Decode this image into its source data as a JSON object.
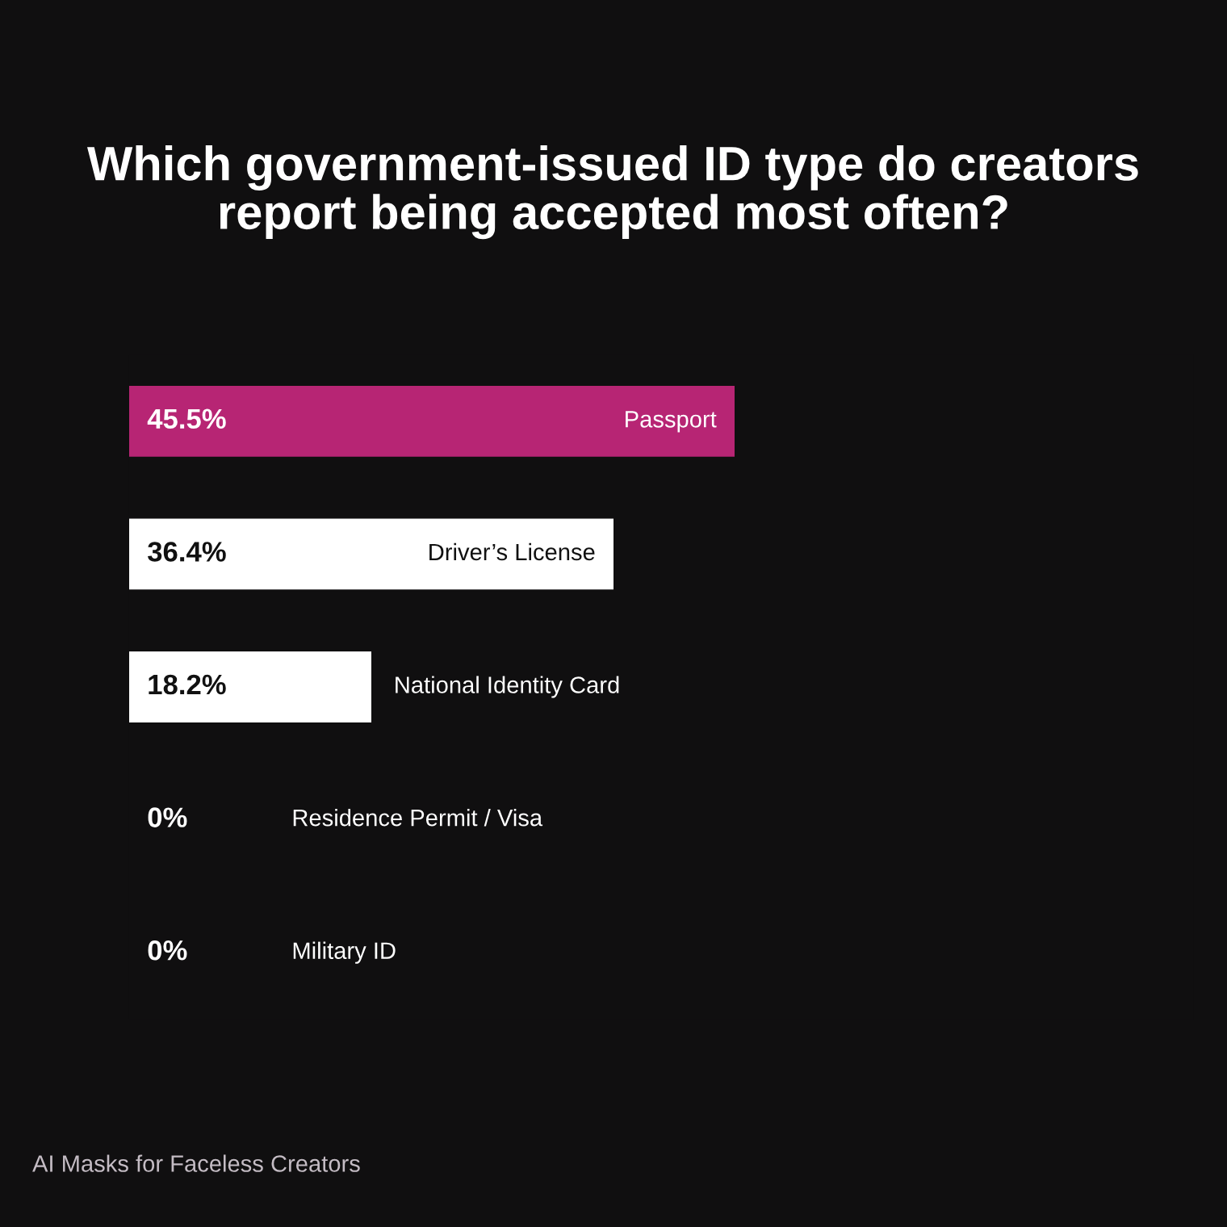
{
  "chart_data": {
    "type": "bar",
    "orientation": "horizontal",
    "title": "Which government-issued ID type do creators\nreport being accepted most often?",
    "categories": [
      "Passport",
      "Driver’s License",
      "National Identity Card",
      "Residence Permit / Visa",
      "Military ID"
    ],
    "values": [
      45.5,
      36.4,
      18.2,
      0,
      0
    ],
    "colors": [
      "#b72574",
      "#ffffff",
      "#ffffff",
      "#ffffff",
      "#ffffff"
    ],
    "value_labels": [
      "45.5%",
      "36.4%",
      "18.2%",
      "0%",
      "0%"
    ],
    "annotations": [
      "AI Masks for Faceless Creators"
    ]
  }
}
